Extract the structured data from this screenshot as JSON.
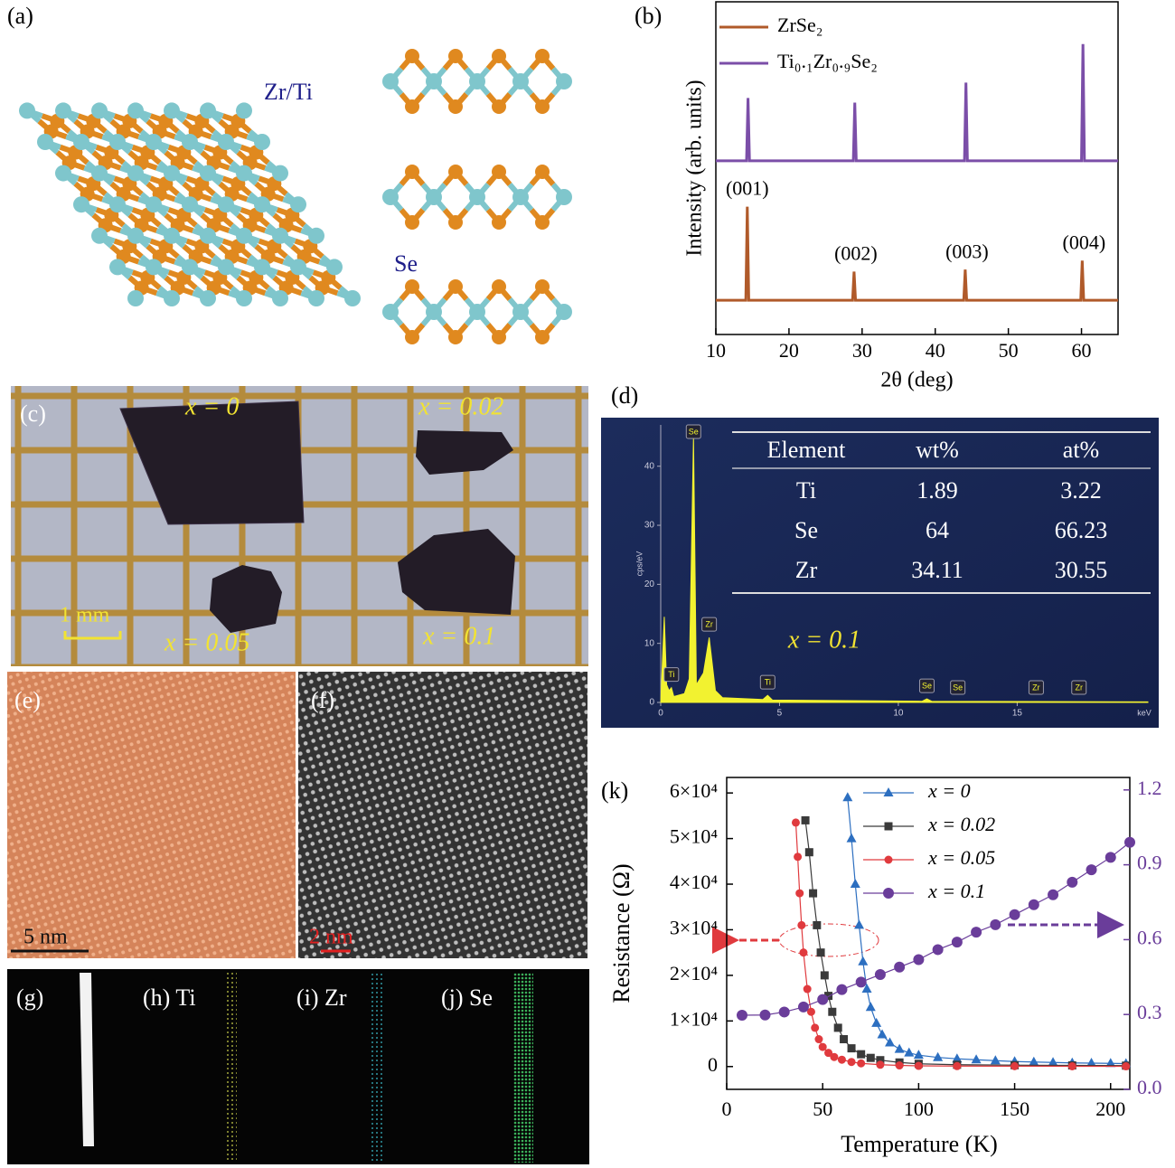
{
  "figure": {
    "panel_labels": {
      "a": "(a)",
      "c": "(c)",
      "e": "(e)",
      "f": "(f)",
      "g": "(g)",
      "h": "(h) Ti",
      "i": "(i) Zr",
      "j": "(j) Se"
    },
    "structure_labels": [
      "Zr/Ti",
      "Se"
    ],
    "crystal_labels": [
      "x = 0",
      "x = 0.02",
      "x = 0.05",
      "x = 0.1"
    ],
    "scale_bars": {
      "c": "1 mm",
      "e": "5 nm",
      "f": "2 nm"
    }
  },
  "chart_data": [
    {
      "type": "line",
      "panel_label": "(b)",
      "xlabel": "2θ (deg)",
      "ylabel": "Intensity (arb. units)",
      "xlim": [
        10,
        65
      ],
      "xticks": [
        10,
        20,
        30,
        40,
        50,
        60
      ],
      "ylim": [
        0,
        100
      ],
      "series": [
        {
          "name": "ZrSe₂",
          "color": "#b05a2a",
          "x": [
            10,
            14.1,
            14.3,
            14.5,
            28.7,
            28.9,
            29.1,
            43.9,
            44.1,
            44.3,
            59.9,
            60.1,
            60.3,
            65
          ],
          "values": [
            10.3,
            10.3,
            38.4,
            10.3,
            10.3,
            18.9,
            10.3,
            10.3,
            19.5,
            10.3,
            10.3,
            22.2,
            10.3,
            10.3
          ]
        },
        {
          "name": "Ti₀.₁Zr₀.₉Se₂",
          "color": "#7b4ea8",
          "x": [
            10,
            14.2,
            14.4,
            14.6,
            28.8,
            29.0,
            29.2,
            44.0,
            44.2,
            44.4,
            60.0,
            60.2,
            60.4,
            65
          ],
          "values": [
            52.2,
            52.2,
            71.1,
            52.2,
            52.2,
            69.7,
            52.2,
            52.2,
            75.7,
            52.2,
            52.2,
            87.3,
            52.2,
            52.2
          ]
        }
      ],
      "annotations": [
        "(001)",
        "(002)",
        "(003)",
        "(004)"
      ],
      "legend": "upper left"
    },
    {
      "type": "area",
      "panel_label": "(d)",
      "ylabel": "cps/eV",
      "xunit": "keV",
      "xlim": [
        0,
        20.5
      ],
      "xticks": [
        0,
        5,
        10,
        15
      ],
      "ylim": [
        0,
        47
      ],
      "yticks": [
        0,
        10,
        20,
        30,
        40
      ],
      "color": "#f2f230",
      "x": [
        0,
        0.15,
        0.25,
        0.35,
        0.45,
        0.55,
        1.0,
        1.2,
        1.38,
        1.5,
        1.8,
        2.04,
        2.3,
        2.6,
        4.3,
        4.5,
        4.7,
        11.0,
        11.2,
        11.4,
        20.5
      ],
      "values": [
        0,
        14.5,
        3,
        2,
        2.5,
        1,
        1.5,
        4,
        45,
        3,
        5,
        11,
        2,
        0.8,
        0.5,
        1.2,
        0.4,
        0.2,
        0.6,
        0.2,
        0.1
      ],
      "peak_labels": [
        "Ti",
        "Se",
        "Zr",
        "Ti",
        "Se",
        "Se",
        "Zr",
        "Zr"
      ],
      "peak_label_x": [
        0.45,
        1.38,
        2.04,
        4.5,
        11.2,
        12.5,
        15.8,
        17.6
      ],
      "annotation": "x = 0.1",
      "table": {
        "header": [
          "Element",
          "wt%",
          "at%"
        ],
        "rows": [
          [
            "Ti",
            1.89,
            3.22
          ],
          [
            "Se",
            64,
            66.23
          ],
          [
            "Zr",
            34.11,
            30.55
          ]
        ]
      }
    },
    {
      "type": "line",
      "panel_label": "(k)",
      "xlabel": "Temperature (K)",
      "ylabel": "Resistance (Ω)",
      "xlim": [
        0,
        210
      ],
      "xticks": [
        0,
        50,
        100,
        150,
        200
      ],
      "ylim": [
        -5000,
        63400
      ],
      "yticks": [
        0,
        {
          "value": 10000,
          "label": "1×10⁴"
        },
        {
          "value": 20000,
          "label": "2×10⁴"
        },
        {
          "value": 30000,
          "label": "3×10⁴"
        },
        {
          "value": 40000,
          "label": "4×10⁴"
        },
        {
          "value": 50000,
          "label": "5×10⁴"
        },
        {
          "value": 60000,
          "label": "6×10⁴"
        }
      ],
      "y2lim": [
        0,
        1.25
      ],
      "y2ticks": [
        {
          "value": 0,
          "label": "0.0"
        },
        0.3,
        0.6,
        0.9,
        1.2
      ],
      "legend": "upper center",
      "series": [
        {
          "name": "x = 0",
          "color": "#2d6fc0",
          "marker": "triangle",
          "x": [
            63,
            65,
            67,
            69,
            71,
            73,
            75,
            78,
            81,
            85,
            90,
            95,
            100,
            110,
            120,
            130,
            140,
            150,
            160,
            170,
            180,
            190,
            200,
            208
          ],
          "values": [
            59000,
            50000,
            40000,
            31000,
            23000,
            17000,
            13000,
            9500,
            7000,
            5200,
            3800,
            3000,
            2500,
            2000,
            1700,
            1500,
            1300,
            1100,
            1000,
            900,
            800,
            750,
            700,
            650
          ]
        },
        {
          "name": "x = 0.02",
          "color": "#3a3a3a",
          "marker": "square",
          "x": [
            41,
            43,
            45,
            47,
            49,
            51,
            53,
            55,
            58,
            61,
            65,
            70,
            75,
            80,
            90,
            100,
            120,
            150,
            180,
            208
          ],
          "values": [
            54000,
            47000,
            38000,
            31000,
            25000,
            20000,
            15500,
            12000,
            8500,
            6000,
            4000,
            2700,
            1900,
            1400,
            900,
            600,
            400,
            300,
            250,
            200
          ]
        },
        {
          "name": "x = 0.05",
          "color": "#e03a3e",
          "marker": "circle",
          "x": [
            36,
            37,
            38,
            39,
            40,
            42,
            44,
            46,
            48,
            50,
            53,
            56,
            60,
            65,
            70,
            80,
            90,
            100,
            120,
            150,
            180,
            208
          ],
          "values": [
            53500,
            46000,
            38000,
            31000,
            25000,
            17000,
            12000,
            8500,
            6000,
            4300,
            3000,
            2100,
            1500,
            1000,
            700,
            400,
            250,
            150,
            100,
            80,
            60,
            50
          ]
        },
        {
          "name": "x = 0.1",
          "color": "#6a3d9a",
          "marker": "bigcircle",
          "axis": "y2",
          "x": [
            8,
            20,
            30,
            40,
            50,
            60,
            70,
            80,
            90,
            100,
            110,
            120,
            130,
            140,
            150,
            160,
            170,
            180,
            190,
            200,
            210
          ],
          "values": [
            0.297,
            0.298,
            0.31,
            0.33,
            0.36,
            0.4,
            0.43,
            0.46,
            0.49,
            0.52,
            0.56,
            0.59,
            0.63,
            0.66,
            0.7,
            0.74,
            0.78,
            0.83,
            0.88,
            0.93,
            0.99
          ]
        }
      ]
    }
  ]
}
